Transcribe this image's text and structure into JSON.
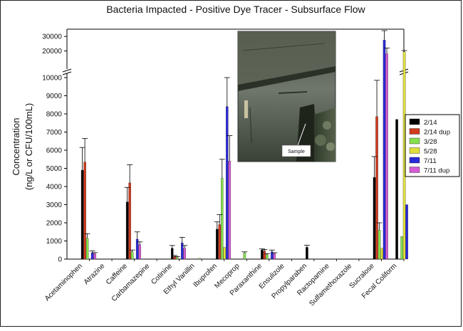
{
  "chart_data": {
    "type": "bar",
    "title": "Bacteria Impacted - Positive Dye Tracer - Subsurface Flow",
    "ylabel": [
      "Concentration",
      "(ng/L or CFU/100mL)"
    ],
    "xlabel": "",
    "categories": [
      "Acetaminophen",
      "Atrazine",
      "Caffeine",
      "Carbamazepine",
      "Cotinine",
      "Ethyl Vanillin",
      "Ibuprofen",
      "Mecoprop",
      "Paraxanthine",
      "Ensulizole",
      "Propylparaben",
      "Ractopamine",
      "Sulfamethoxazole",
      "Sucralose",
      "Fecal Coliform"
    ],
    "axis": {
      "lower_range": [
        0,
        10000
      ],
      "lower_ticks": [
        "0",
        "1000",
        "2000",
        "3000",
        "4000",
        "5000",
        "6000",
        "7000",
        "8000",
        "9000",
        "10000"
      ],
      "upper_range": [
        10000,
        35000
      ],
      "upper_ticks": [
        "20000",
        "30000"
      ],
      "break": true
    },
    "legend_position": "right",
    "series": [
      {
        "name": "2/14",
        "color": "#000000",
        "values": [
          4900,
          0,
          3150,
          0,
          600,
          0,
          1650,
          0,
          500,
          0,
          650,
          0,
          0,
          4500,
          7700
        ],
        "errors": [
          1250,
          0,
          800,
          0,
          150,
          0,
          400,
          0,
          60,
          0,
          120,
          0,
          0,
          1150,
          0
        ]
      },
      {
        "name": "2/14 dup",
        "color": "#d03a1e",
        "values": [
          5350,
          0,
          4200,
          0,
          150,
          0,
          1900,
          0,
          450,
          0,
          0,
          0,
          0,
          7850,
          0
        ],
        "errors": [
          1300,
          0,
          1000,
          0,
          50,
          0,
          550,
          0,
          80,
          0,
          0,
          0,
          0,
          2000,
          0
        ]
      },
      {
        "name": "3/28",
        "color": "#86df4e",
        "values": [
          1150,
          0,
          400,
          0,
          100,
          50,
          4450,
          350,
          250,
          0,
          0,
          0,
          0,
          1600,
          1250
        ],
        "errors": [
          250,
          0,
          100,
          0,
          40,
          0,
          1050,
          50,
          50,
          0,
          0,
          0,
          0,
          400,
          0
        ]
      },
      {
        "name": "5/28",
        "color": "#dfdf3c",
        "values": [
          0,
          0,
          0,
          0,
          0,
          0,
          650,
          0,
          0,
          0,
          0,
          0,
          0,
          600,
          19500
        ],
        "errors": [
          0,
          0,
          0,
          0,
          0,
          0,
          0,
          0,
          0,
          0,
          0,
          0,
          0,
          0,
          800
        ]
      },
      {
        "name": "7/11",
        "color": "#2a2ad8",
        "values": [
          350,
          0,
          1100,
          0,
          900,
          0,
          8400,
          0,
          400,
          0,
          0,
          0,
          0,
          27500,
          3000
        ],
        "errors": [
          100,
          0,
          400,
          0,
          300,
          0,
          1600,
          0,
          100,
          0,
          0,
          0,
          0,
          6500,
          0
        ]
      },
      {
        "name": "7/11 dup",
        "color": "#d35bd3",
        "values": [
          300,
          0,
          800,
          0,
          600,
          0,
          5400,
          0,
          300,
          0,
          0,
          0,
          0,
          18000,
          0
        ],
        "errors": [
          60,
          0,
          150,
          0,
          150,
          0,
          1400,
          0,
          50,
          0,
          0,
          0,
          0,
          4000,
          0
        ]
      }
    ]
  },
  "inset_photo": {
    "callout_label": "Sample"
  }
}
